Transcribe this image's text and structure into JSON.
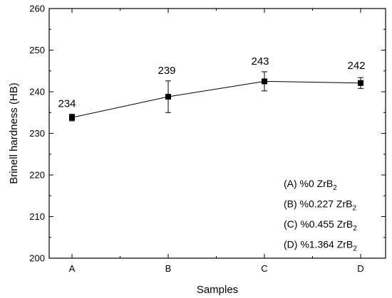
{
  "chart_data": {
    "type": "line",
    "title": "",
    "xlabel": "Samples",
    "ylabel": "Brinell hardness (HB)",
    "categories": [
      "A",
      "B",
      "C",
      "D"
    ],
    "ylim": [
      200,
      260
    ],
    "yticks": [
      200,
      210,
      220,
      230,
      240,
      250,
      260
    ],
    "grid": false,
    "series": [
      {
        "values": [
          233.8,
          238.8,
          242.5,
          242.1
        ],
        "error_low": [
          233.0,
          235.0,
          240.2,
          240.8
        ],
        "error_high": [
          234.6,
          242.6,
          244.8,
          243.4
        ],
        "data_labels": [
          "234",
          "239",
          "243",
          "242"
        ],
        "color": "#000000",
        "marker": "square"
      }
    ],
    "legend": {
      "placement": "bottom-right",
      "entries": [
        {
          "prefix": "(A) %0 ZrB",
          "sub": "2"
        },
        {
          "prefix": "(B) %0.227 ZrB",
          "sub": "2"
        },
        {
          "prefix": "(C) %0.455 ZrB",
          "sub": "2"
        },
        {
          "prefix": "(D) %1.364 ZrB",
          "sub": "2"
        }
      ]
    }
  }
}
